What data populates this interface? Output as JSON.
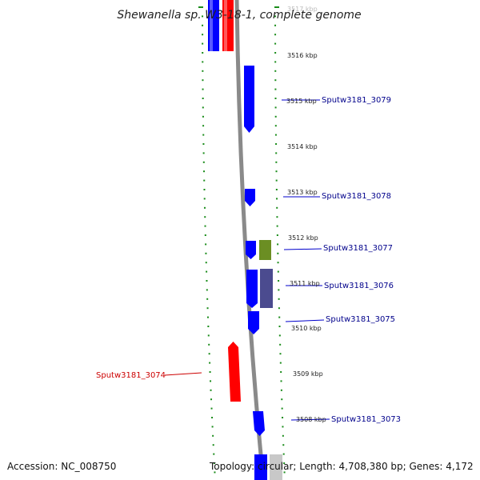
{
  "title": "Shewanella sp. W3-18-1, complete genome",
  "footer": {
    "accession": "Accession: NC_008750",
    "summary": "Topology: circular; Length: 4,708,380 bp; Genes: 4,172"
  },
  "colors": {
    "forward_gene": "#0000ff",
    "reverse_gene": "#ff0000",
    "feature_green": "#6b8e23",
    "feature_slate": "#4b4b8f",
    "ticks": "#1a8c1a",
    "backbone": "#808080",
    "forward_label": "#00008b",
    "reverse_label": "#cc0000"
  },
  "kbp_labels": [
    {
      "text": "3517 kbp",
      "faded": true
    },
    {
      "text": "3516 kbp",
      "faded": false
    },
    {
      "text": "3515 kbp",
      "faded": false
    },
    {
      "text": "3514 kbp",
      "faded": false
    },
    {
      "text": "3513 kbp",
      "faded": false
    },
    {
      "text": "3512 kbp",
      "faded": false
    },
    {
      "text": "3511 kbp",
      "faded": false
    },
    {
      "text": "3510 kbp",
      "faded": false
    },
    {
      "text": "3509 kbp",
      "faded": false
    },
    {
      "text": "3508 kbp",
      "faded": false
    }
  ],
  "genes": [
    {
      "label": "Sputw3181_3079",
      "strand": "forward"
    },
    {
      "label": "Sputw3181_3078",
      "strand": "forward"
    },
    {
      "label": "Sputw3181_3077",
      "strand": "forward"
    },
    {
      "label": "Sputw3181_3076",
      "strand": "forward"
    },
    {
      "label": "Sputw3181_3075",
      "strand": "forward"
    },
    {
      "label": "Sputw3181_3074",
      "strand": "reverse"
    },
    {
      "label": "Sputw3181_3073",
      "strand": "forward"
    }
  ]
}
